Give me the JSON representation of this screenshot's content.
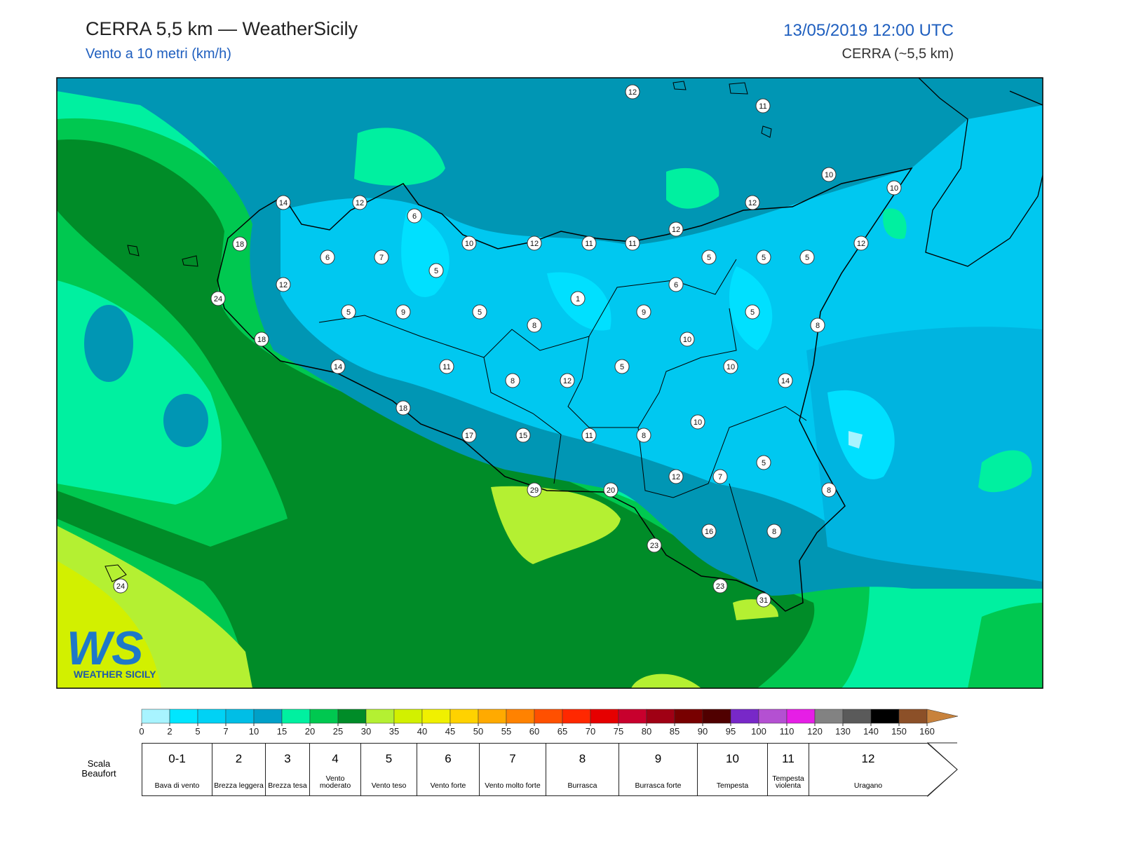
{
  "header": {
    "title": "CERRA 5,5 km — WeatherSicily",
    "subtitle": "Vento a 10 metri (km/h)",
    "datetime": "13/05/2019 12:00 UTC",
    "model": "CERRA (~5,5 km)"
  },
  "logo": {
    "mark": "WS",
    "text": "WEATHER SICILY"
  },
  "stations": [
    12,
    11,
    10,
    10,
    14,
    12,
    6,
    12,
    12,
    18,
    10,
    12,
    11,
    11,
    12,
    6,
    7,
    5,
    5,
    5,
    5,
    12,
    6,
    1,
    24,
    5,
    9,
    5,
    9,
    5,
    8,
    8,
    18,
    10,
    14,
    11,
    5,
    10,
    8,
    12,
    14,
    18,
    10,
    17,
    15,
    11,
    8,
    5,
    12,
    7,
    8,
    29,
    20,
    16,
    8,
    23,
    24,
    23,
    31
  ],
  "colorbar": {
    "ticks": [
      0,
      2,
      5,
      7,
      10,
      15,
      20,
      25,
      30,
      35,
      40,
      45,
      50,
      55,
      60,
      65,
      70,
      75,
      80,
      85,
      90,
      95,
      100,
      110,
      120,
      130,
      140,
      150,
      160
    ],
    "colors": [
      "#a8f4ff",
      "#00e6ff",
      "#00d2f5",
      "#00bee6",
      "#00a0c8",
      "#00f0a0",
      "#00c850",
      "#008c28",
      "#b4f032",
      "#d2f000",
      "#f0f000",
      "#ffd200",
      "#ffaa00",
      "#ff8200",
      "#ff5000",
      "#ff2800",
      "#e60000",
      "#c8002d",
      "#a00014",
      "#780000",
      "#500000",
      "#7828c8",
      "#b450d2",
      "#e61ee6",
      "#828282",
      "#5a5a5a",
      "#000000",
      "#8c5028",
      "#c8823c"
    ]
  },
  "beaufort": {
    "label": "Scala Beaufort",
    "levels": [
      {
        "force": "0-1",
        "name": "Bava di vento"
      },
      {
        "force": "2",
        "name": "Brezza leggera"
      },
      {
        "force": "3",
        "name": "Brezza tesa"
      },
      {
        "force": "4",
        "name": "Vento moderato"
      },
      {
        "force": "5",
        "name": "Vento teso"
      },
      {
        "force": "6",
        "name": "Vento forte"
      },
      {
        "force": "7",
        "name": "Vento molto forte"
      },
      {
        "force": "8",
        "name": "Burrasca"
      },
      {
        "force": "9",
        "name": "Burrasca forte"
      },
      {
        "force": "10",
        "name": "Tempesta"
      },
      {
        "force": "11",
        "name": "Tempesta violenta"
      },
      {
        "force": "12",
        "name": "Uragano"
      }
    ]
  }
}
